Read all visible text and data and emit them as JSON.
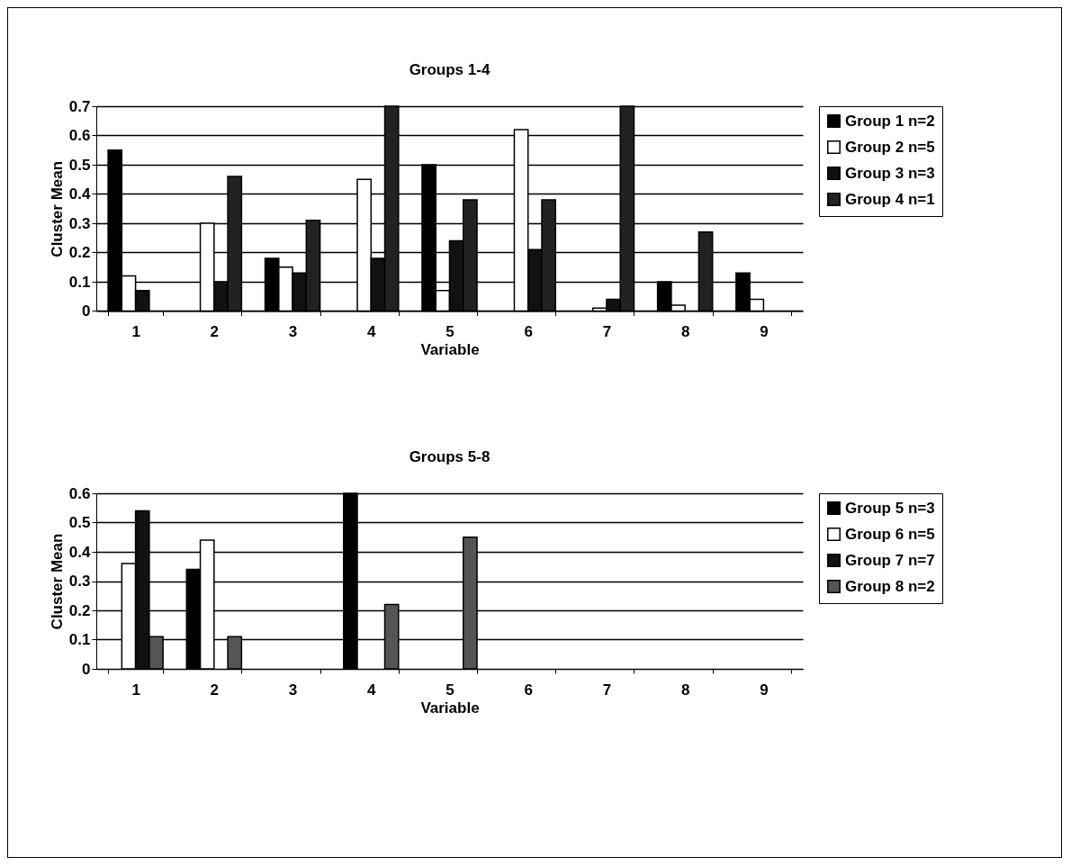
{
  "chart_data": [
    {
      "type": "bar",
      "title": "Groups 1-4",
      "xlabel": "Variable",
      "ylabel": "Cluster Mean",
      "categories": [
        "1",
        "2",
        "3",
        "4",
        "5",
        "6",
        "7",
        "8",
        "9"
      ],
      "series": [
        {
          "name": "Group 1 n=2",
          "color": "#000000",
          "values": [
            0.55,
            null,
            0.18,
            null,
            0.5,
            null,
            null,
            0.1,
            0.13
          ]
        },
        {
          "name": "Group 2 n=5",
          "color": "#ffffff",
          "values": [
            0.12,
            0.3,
            0.15,
            0.45,
            0.07,
            0.62,
            0.01,
            0.02,
            0.04
          ]
        },
        {
          "name": "Group 3 n=3",
          "color": "#111111",
          "values": [
            0.07,
            0.1,
            0.13,
            0.18,
            0.24,
            0.21,
            0.04,
            null,
            null
          ]
        },
        {
          "name": "Group 4 n=1",
          "color": "#222222",
          "values": [
            null,
            0.46,
            0.31,
            0.7,
            0.38,
            0.38,
            0.7,
            0.27,
            null
          ]
        }
      ],
      "ylim": [
        0,
        0.7
      ],
      "yticks": [
        0,
        0.1,
        0.2,
        0.3,
        0.4,
        0.5,
        0.6,
        0.7
      ],
      "grid": "y",
      "legend": "right"
    },
    {
      "type": "bar",
      "title": "Groups 5-8",
      "xlabel": "Variable",
      "ylabel": "Cluster Mean",
      "categories": [
        "1",
        "2",
        "3",
        "4",
        "5",
        "6",
        "7",
        "8",
        "9"
      ],
      "series": [
        {
          "name": "Group 5 n=3",
          "color": "#000000",
          "values": [
            null,
            0.34,
            null,
            0.6,
            null,
            null,
            null,
            null,
            null
          ]
        },
        {
          "name": "Group 6 n=5",
          "color": "#ffffff",
          "values": [
            0.36,
            0.44,
            null,
            null,
            null,
            null,
            null,
            null,
            null
          ]
        },
        {
          "name": "Group 7 n=7",
          "color": "#111111",
          "values": [
            0.54,
            null,
            null,
            null,
            null,
            null,
            null,
            null,
            null
          ]
        },
        {
          "name": "Group 8 n=2",
          "color": "#555555",
          "values": [
            0.11,
            0.11,
            null,
            0.22,
            0.45,
            null,
            null,
            null,
            null
          ]
        }
      ],
      "ylim": [
        0,
        0.6
      ],
      "yticks": [
        0,
        0.1,
        0.2,
        0.3,
        0.4,
        0.5,
        0.6
      ],
      "grid": "y",
      "legend": "right"
    }
  ]
}
